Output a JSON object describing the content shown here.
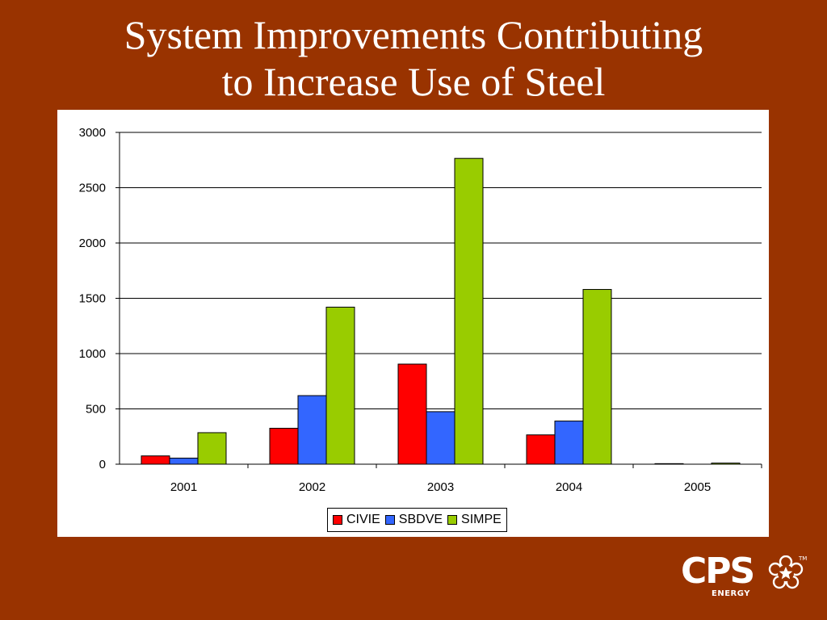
{
  "slide": {
    "title_line1": "System Improvements Contributing",
    "title_line2": "to Increase Use of Steel",
    "background": "#993300"
  },
  "logo": {
    "text": "CPS",
    "sub": "ENERGY",
    "tm": "TM",
    "icon": "star-flower-icon"
  },
  "chart_data": {
    "type": "bar",
    "categories": [
      "2001",
      "2002",
      "2003",
      "2004",
      "2005"
    ],
    "series": [
      {
        "name": "CIVIE",
        "color": "#ff0000",
        "values": [
          75,
          325,
          905,
          265,
          5
        ]
      },
      {
        "name": "SBDVE",
        "color": "#3366ff",
        "values": [
          55,
          620,
          475,
          390,
          0
        ]
      },
      {
        "name": "SIMPE",
        "color": "#99cc00",
        "values": [
          285,
          1420,
          2765,
          1580,
          10
        ]
      }
    ],
    "yticks": [
      "0",
      "500",
      "1000",
      "1500",
      "2000",
      "2500",
      "3000"
    ],
    "ylim": [
      0,
      3000
    ],
    "grid": true,
    "legend": "bottom"
  }
}
